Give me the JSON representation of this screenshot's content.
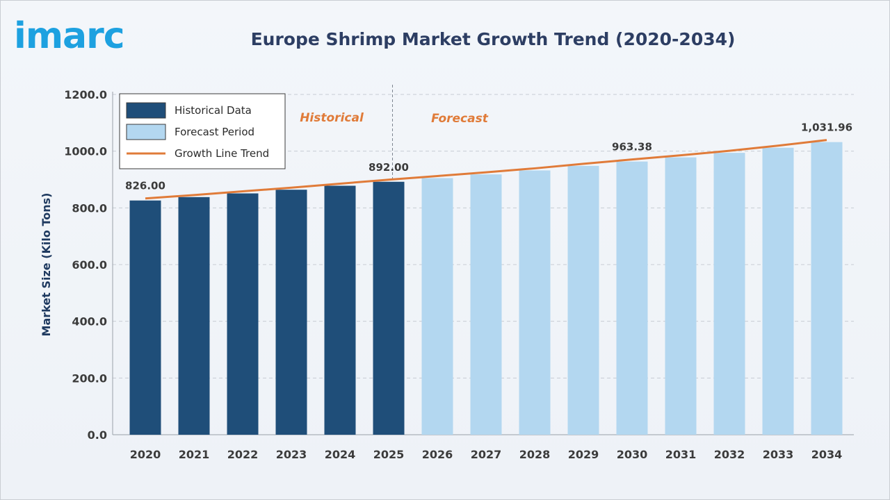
{
  "header": {
    "logo_text": "imarc",
    "title": "Europe Shrimp Market Growth Trend (2020-2034)"
  },
  "colors": {
    "historical": "#1f4e79",
    "forecast": "#b3d7f0",
    "trend_line": "#e07b39",
    "region_label": "#e07b39"
  },
  "chart_data": {
    "type": "bar",
    "title": "Europe Shrimp Market Growth Trend (2020-2034)",
    "ylabel": "Market Size (Kilo Tons)",
    "xlabel": "",
    "ylim": [
      0,
      1200
    ],
    "yticks": [
      "0.0",
      "200.0",
      "400.0",
      "600.0",
      "800.0",
      "1000.0",
      "1200.0"
    ],
    "ytick_values": [
      0,
      200,
      400,
      600,
      800,
      1000,
      1200
    ],
    "grid": true,
    "legend_position": "top-left",
    "categories": [
      "2020",
      "2021",
      "2022",
      "2023",
      "2024",
      "2025",
      "2026",
      "2027",
      "2028",
      "2029",
      "2030",
      "2031",
      "2032",
      "2033",
      "2034"
    ],
    "values": [
      826.0,
      838.0,
      851.0,
      864.0,
      878.0,
      892.0,
      905.0,
      918.0,
      932.0,
      948.0,
      963.38,
      978.0,
      994.0,
      1012.0,
      1031.96
    ],
    "historical_count": 6,
    "data_labels": [
      {
        "index": 0,
        "text": "826.00"
      },
      {
        "index": 5,
        "text": "892.00"
      },
      {
        "index": 10,
        "text": "963.38"
      },
      {
        "index": 14,
        "text": "1,031.96"
      }
    ],
    "region_labels": {
      "historical": "Historical",
      "forecast": "Forecast"
    },
    "legend": [
      {
        "key": "historical",
        "label": "Historical Data"
      },
      {
        "key": "forecast",
        "label": "Forecast Period"
      },
      {
        "key": "trend_line",
        "label": "Growth Line Trend"
      }
    ]
  }
}
